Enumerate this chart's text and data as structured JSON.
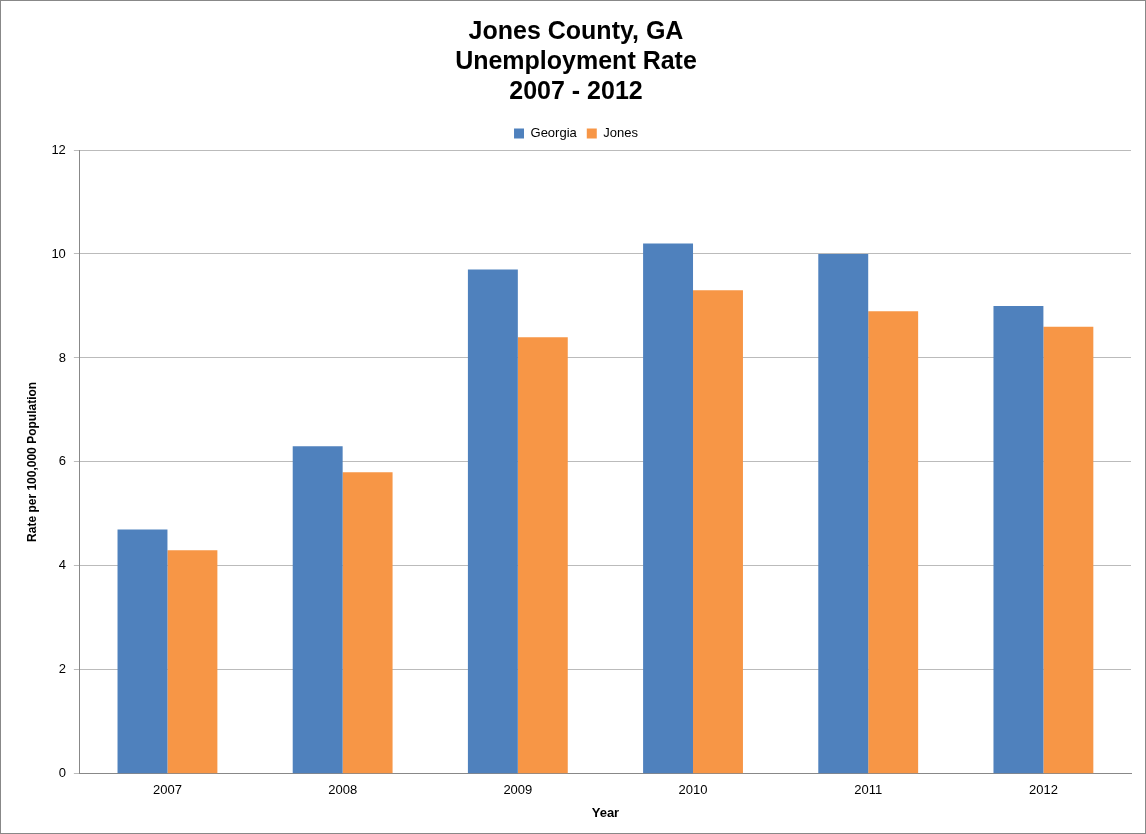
{
  "chart_data": {
    "type": "bar",
    "title": "Jones County, GA\nUnemployment Rate\n2007 - 2012",
    "xlabel": "Year",
    "ylabel": "Rate per 100,000 Population",
    "categories": [
      "2007",
      "2008",
      "2009",
      "2010",
      "2011",
      "2012"
    ],
    "series": [
      {
        "name": "Georgia",
        "color": "#4f81bd",
        "values": [
          4.7,
          6.3,
          9.7,
          10.2,
          10.0,
          9.0
        ]
      },
      {
        "name": "Jones",
        "color": "#f79646",
        "values": [
          4.3,
          5.8,
          8.4,
          9.3,
          8.9,
          8.6
        ]
      }
    ],
    "ylim": [
      0,
      12
    ],
    "yticks": [
      0,
      2,
      4,
      6,
      8,
      10,
      12
    ],
    "grid": "y",
    "legend": "top"
  }
}
